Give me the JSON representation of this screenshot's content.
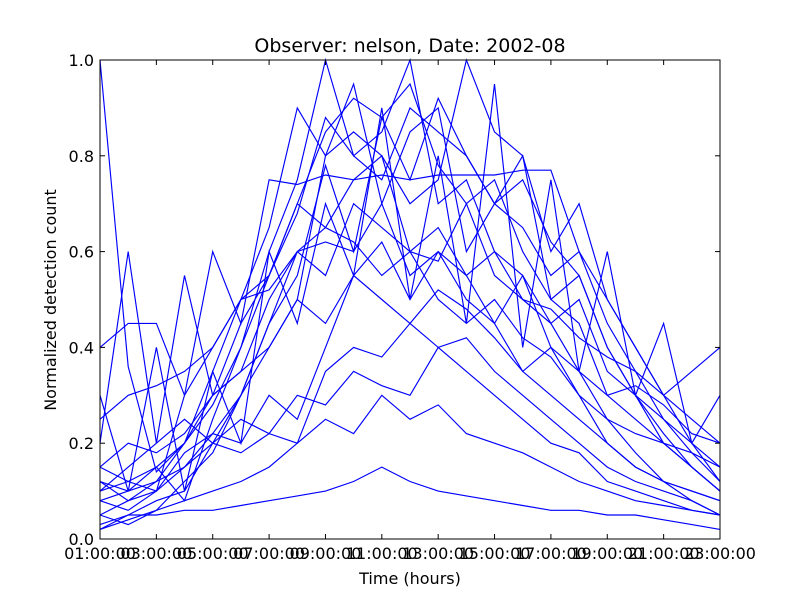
{
  "chart_data": {
    "type": "line",
    "title": "Observer: nelson, Date: 2002-08",
    "xlabel": "Time (hours)",
    "ylabel": "Normalized detection count",
    "xlim": [
      1,
      23
    ],
    "ylim": [
      0,
      1
    ],
    "grid": false,
    "legend": "none",
    "line_color": "#0000ff",
    "x_ticks": [
      {
        "value": 1,
        "label": "01:00:00"
      },
      {
        "value": 3,
        "label": "03:00:00"
      },
      {
        "value": 5,
        "label": "05:00:00"
      },
      {
        "value": 7,
        "label": "07:00:00"
      },
      {
        "value": 9,
        "label": "09:00:00"
      },
      {
        "value": 11,
        "label": "11:00:00"
      },
      {
        "value": 13,
        "label": "13:00:00"
      },
      {
        "value": 15,
        "label": "15:00:00"
      },
      {
        "value": 17,
        "label": "17:00:00"
      },
      {
        "value": 19,
        "label": "19:00:00"
      },
      {
        "value": 21,
        "label": "21:00:00"
      },
      {
        "value": 23,
        "label": "23:00:00"
      }
    ],
    "y_ticks": [
      {
        "value": 0.0,
        "label": "0.0"
      },
      {
        "value": 0.2,
        "label": "0.2"
      },
      {
        "value": 0.4,
        "label": "0.4"
      },
      {
        "value": 0.6,
        "label": "0.6"
      },
      {
        "value": 0.8,
        "label": "0.8"
      },
      {
        "value": 1.0,
        "label": "1.0"
      }
    ],
    "x": [
      1,
      2,
      3,
      4,
      5,
      6,
      7,
      8,
      9,
      10,
      11,
      12,
      13,
      14,
      15,
      16,
      17,
      18,
      19,
      20,
      21,
      22,
      23
    ],
    "series": [
      {
        "values": [
          1.0,
          0.36,
          0.14,
          0.2,
          0.3,
          0.45,
          0.55,
          0.7,
          0.85,
          0.92,
          0.88,
          0.95,
          0.78,
          0.7,
          0.75,
          0.6,
          0.5,
          0.55,
          0.4,
          0.3,
          0.2,
          0.15,
          0.1
        ]
      },
      {
        "values": [
          0.12,
          0.1,
          0.15,
          0.08,
          0.25,
          0.4,
          0.6,
          0.75,
          1.0,
          0.8,
          0.85,
          1.0,
          0.7,
          0.75,
          0.6,
          0.55,
          0.45,
          0.5,
          0.35,
          0.3,
          0.25,
          0.18,
          0.12
        ]
      },
      {
        "values": [
          0.05,
          0.08,
          0.12,
          0.2,
          0.35,
          0.5,
          0.65,
          0.9,
          0.8,
          0.95,
          0.7,
          0.85,
          0.9,
          0.6,
          0.7,
          0.8,
          0.5,
          0.45,
          0.3,
          0.25,
          0.2,
          0.15,
          0.1
        ]
      },
      {
        "values": [
          0.4,
          0.45,
          0.45,
          0.3,
          0.4,
          0.5,
          0.52,
          0.6,
          0.62,
          0.6,
          0.7,
          0.55,
          0.6,
          0.5,
          0.45,
          0.55,
          0.4,
          0.35,
          0.3,
          0.32,
          0.28,
          0.22,
          0.2
        ]
      },
      {
        "values": [
          0.15,
          0.12,
          0.1,
          0.18,
          0.22,
          0.3,
          0.45,
          0.55,
          0.78,
          0.6,
          0.88,
          0.75,
          0.92,
          0.8,
          0.7,
          0.65,
          0.55,
          0.6,
          0.45,
          0.35,
          0.25,
          0.2,
          0.15
        ]
      },
      {
        "values": [
          0.03,
          0.05,
          0.05,
          0.06,
          0.06,
          0.07,
          0.08,
          0.09,
          0.1,
          0.12,
          0.15,
          0.12,
          0.1,
          0.09,
          0.08,
          0.07,
          0.06,
          0.06,
          0.05,
          0.05,
          0.04,
          0.03,
          0.02
        ]
      },
      {
        "values": [
          0.2,
          0.6,
          0.2,
          0.55,
          0.3,
          0.35,
          0.4,
          0.5,
          0.45,
          0.55,
          0.62,
          0.5,
          0.6,
          0.55,
          0.45,
          0.35,
          0.4,
          0.3,
          0.2,
          0.15,
          0.12,
          0.1,
          0.08
        ]
      },
      {
        "values": [
          0.1,
          0.15,
          0.2,
          0.25,
          0.2,
          0.3,
          0.4,
          0.5,
          0.8,
          0.85,
          0.8,
          0.7,
          0.75,
          1.0,
          0.85,
          0.8,
          0.6,
          0.7,
          0.5,
          0.4,
          0.3,
          0.2,
          0.12
        ]
      },
      {
        "values": [
          0.02,
          0.05,
          0.08,
          0.1,
          0.2,
          0.25,
          0.22,
          0.3,
          0.28,
          0.35,
          0.32,
          0.3,
          0.4,
          0.35,
          0.3,
          0.25,
          0.2,
          0.18,
          0.12,
          0.1,
          0.08,
          0.06,
          0.05
        ]
      },
      {
        "values": [
          0.3,
          0.1,
          0.4,
          0.1,
          0.35,
          0.2,
          0.6,
          0.45,
          0.7,
          0.55,
          0.9,
          0.5,
          0.8,
          0.45,
          0.95,
          0.4,
          0.75,
          0.35,
          0.6,
          0.3,
          0.45,
          0.2,
          0.3
        ]
      },
      {
        "values": [
          0.08,
          0.1,
          0.12,
          0.15,
          0.2,
          0.18,
          0.22,
          0.2,
          0.25,
          0.22,
          0.3,
          0.25,
          0.28,
          0.22,
          0.2,
          0.18,
          0.15,
          0.12,
          0.1,
          0.08,
          0.07,
          0.06,
          0.05
        ]
      },
      {
        "values": [
          0.12,
          0.08,
          0.1,
          0.3,
          0.6,
          0.45,
          0.75,
          0.74,
          0.76,
          0.75,
          0.76,
          0.75,
          0.76,
          0.76,
          0.76,
          0.77,
          0.77,
          0.6,
          0.5,
          0.4,
          0.3,
          0.35,
          0.4
        ]
      },
      {
        "values": [
          0.02,
          0.04,
          0.06,
          0.12,
          0.18,
          0.3,
          0.45,
          0.6,
          0.55,
          0.7,
          0.65,
          0.6,
          0.58,
          0.7,
          0.55,
          0.5,
          0.45,
          0.35,
          0.25,
          0.18,
          0.12,
          0.08,
          0.05
        ]
      },
      {
        "values": [
          0.15,
          0.2,
          0.18,
          0.22,
          0.3,
          0.35,
          0.5,
          0.6,
          0.65,
          0.62,
          0.55,
          0.6,
          0.5,
          0.45,
          0.5,
          0.42,
          0.38,
          0.3,
          0.25,
          0.22,
          0.2,
          0.18,
          0.15
        ]
      },
      {
        "values": [
          0.1,
          0.12,
          0.15,
          0.2,
          0.28,
          0.4,
          0.55,
          0.68,
          0.88,
          0.8,
          0.75,
          0.9,
          0.85,
          0.8,
          0.7,
          0.75,
          0.62,
          0.55,
          0.4,
          0.3,
          0.22,
          0.15,
          0.1
        ]
      },
      {
        "values": [
          0.05,
          0.03,
          0.06,
          0.08,
          0.1,
          0.12,
          0.15,
          0.2,
          0.35,
          0.4,
          0.38,
          0.45,
          0.4,
          0.42,
          0.35,
          0.3,
          0.25,
          0.2,
          0.15,
          0.12,
          0.1,
          0.08,
          0.05
        ]
      },
      {
        "values": [
          0.25,
          0.3,
          0.32,
          0.35,
          0.4,
          0.5,
          0.55,
          0.7,
          0.65,
          0.75,
          0.8,
          0.6,
          0.65,
          0.55,
          0.6,
          0.5,
          0.48,
          0.42,
          0.38,
          0.35,
          0.3,
          0.25,
          0.2
        ]
      },
      {
        "values": [
          0.08,
          0.06,
          0.1,
          0.15,
          0.22,
          0.2,
          0.3,
          0.25,
          0.4,
          0.55,
          0.5,
          0.45,
          0.52,
          0.48,
          0.42,
          0.35,
          0.3,
          0.25,
          0.2,
          0.15,
          0.12,
          0.1,
          0.08
        ]
      }
    ]
  }
}
